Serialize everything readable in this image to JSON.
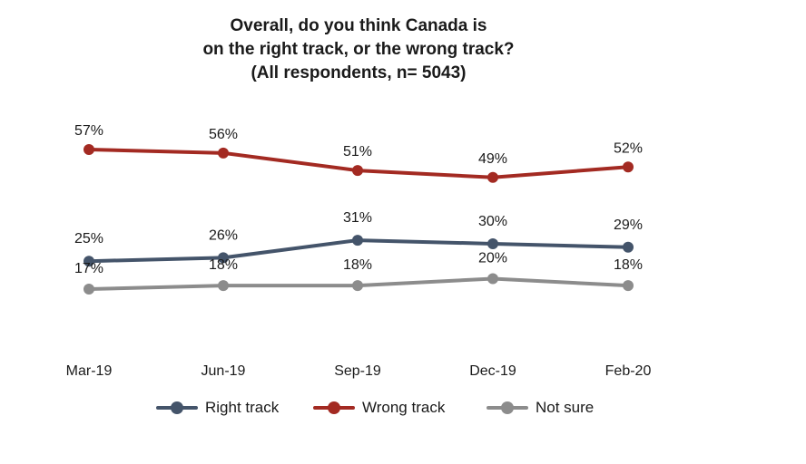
{
  "title": {
    "line1": "Overall, do you think Canada is",
    "line2": "on the right track, or the wrong track?",
    "line3": "(All respondents, n= 5043)"
  },
  "chart_data": {
    "type": "line",
    "categories": [
      "Mar-19",
      "Jun-19",
      "Sep-19",
      "Dec-19",
      "Feb-20"
    ],
    "ylim": [
      0,
      100
    ],
    "legend_position": "bottom",
    "grid": false,
    "series": [
      {
        "name": "Right track",
        "color": "#44546a",
        "values": [
          25,
          26,
          31,
          30,
          29
        ],
        "labels": [
          "25%",
          "26%",
          "31%",
          "30%",
          "29%"
        ]
      },
      {
        "name": "Wrong track",
        "color": "#a32a22",
        "values": [
          57,
          56,
          51,
          49,
          52
        ],
        "labels": [
          "57%",
          "56%",
          "51%",
          "49%",
          "52%"
        ]
      },
      {
        "name": "Not sure",
        "color": "#8c8c8c",
        "values": [
          17,
          18,
          18,
          20,
          18
        ],
        "labels": [
          "17%",
          "18%",
          "18%",
          "20%",
          "18%"
        ]
      }
    ]
  }
}
